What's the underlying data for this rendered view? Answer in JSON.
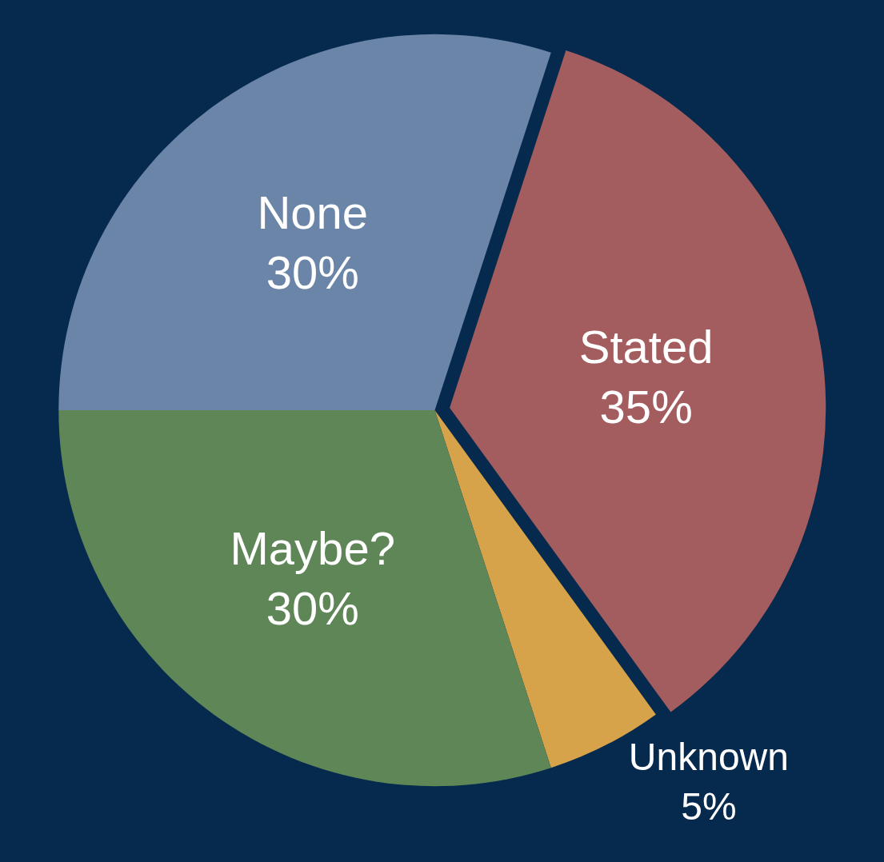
{
  "chart_data": {
    "type": "pie",
    "categories": [
      "Stated",
      "Unknown",
      "Maybe?",
      "None"
    ],
    "values": [
      35,
      5,
      30,
      30
    ],
    "value_labels": [
      "35%",
      "5%",
      "30%",
      "30%"
    ],
    "colors": [
      "#a35d5f",
      "#d6a24a",
      "#5f8656",
      "#6a85a8"
    ]
  }
}
